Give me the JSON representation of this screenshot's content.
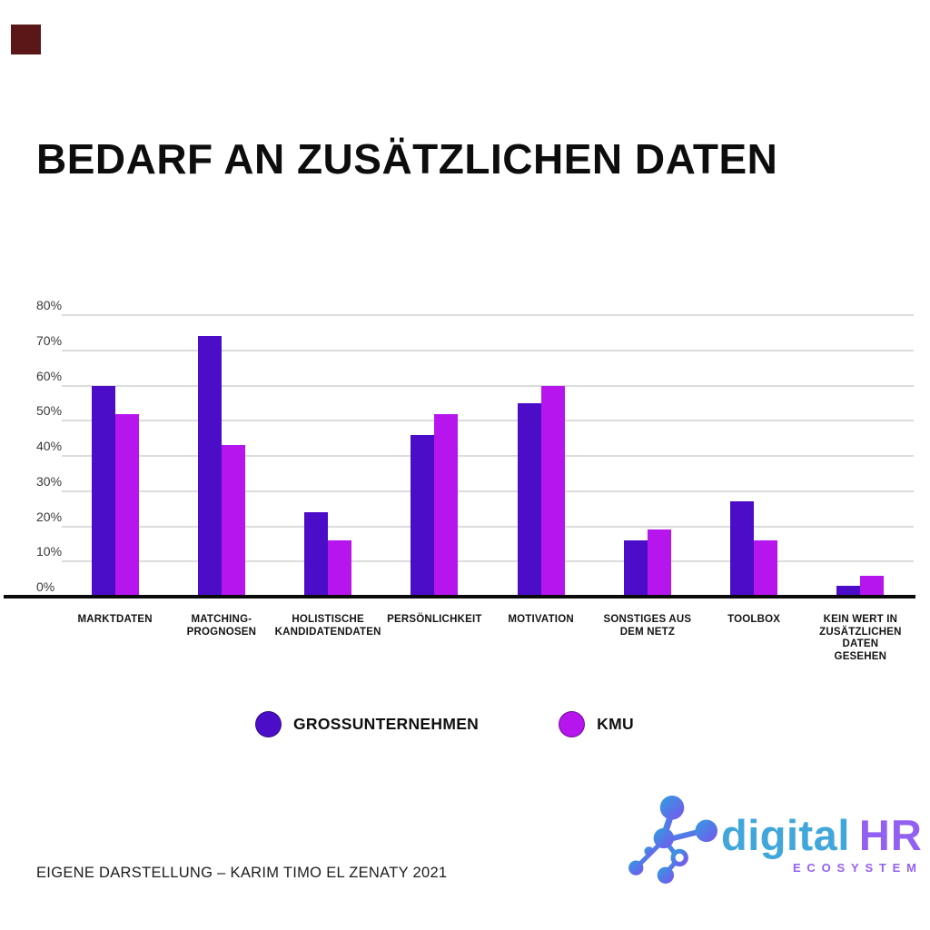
{
  "page": {
    "title": "BEDARF AN ZUSÄTZLICHEN DATEN",
    "source_note": "EIGENE DARSTELLUNG – KARIM TIMO EL ZENATY 2021",
    "corner_square_color": "#5b1717",
    "background_color": "#ffffff"
  },
  "chart_data": {
    "type": "bar",
    "title": "BEDARF AN ZUSÄTZLICHEN DATEN",
    "categories": [
      "MARKTDATEN",
      "MATCHING-PROGNOSEN",
      "HOLISTISCHE KANDIDATENDATEN",
      "PERSÖNLICHKEIT",
      "MOTIVATION",
      "SONSTIGES AUS DEM NETZ",
      "TOOLBOX",
      "KEIN WERT IN ZUSÄTZLICHEN DATEN GESEHEN"
    ],
    "category_label_lines": [
      [
        "MARKTDATEN"
      ],
      [
        "MATCHING-",
        "PROGNOSEN"
      ],
      [
        "HOLISTISCHE",
        "KANDIDATENDATEN"
      ],
      [
        "PERSÖNLICHKEIT"
      ],
      [
        "MOTIVATION"
      ],
      [
        "SONSTIGES AUS",
        "DEM NETZ"
      ],
      [
        "TOOLBOX"
      ],
      [
        "KEIN WERT IN",
        "ZUSÄTZLICHEN",
        "DATEN",
        "GESEHEN"
      ]
    ],
    "series": [
      {
        "name": "GROSSUNTERNEHMEN",
        "color": "#4b0dc7",
        "values": [
          60,
          74,
          24,
          46,
          55,
          16,
          27,
          3
        ]
      },
      {
        "name": "KMU",
        "color": "#b615ee",
        "values": [
          52,
          43,
          16,
          52,
          60,
          19,
          16,
          6
        ]
      }
    ],
    "xlabel": "",
    "ylabel": "",
    "ylim": [
      0,
      80
    ],
    "ytick_step": 10,
    "ytick_labels": [
      "0%",
      "10%",
      "20%",
      "30%",
      "40%",
      "50%",
      "60%",
      "70%",
      "80%"
    ],
    "grid": true,
    "gridline_color": "#dcdcdc",
    "axis_color": "#0a0a0a",
    "legend_position": "bottom"
  },
  "legend": {
    "items": [
      {
        "label": "GROSSUNTERNEHMEN",
        "color": "#4b0dc7"
      },
      {
        "label": "KMU",
        "color": "#b615ee"
      }
    ]
  },
  "logo": {
    "icon": "molecule-network-icon",
    "word1": "digital",
    "word2": "HR",
    "subtitle": "ECOSYSTEM",
    "word1_color": "#41a7db",
    "word2_color": "#9361f2",
    "icon_gradient": [
      "#2f9fe0",
      "#7a53ee"
    ]
  }
}
